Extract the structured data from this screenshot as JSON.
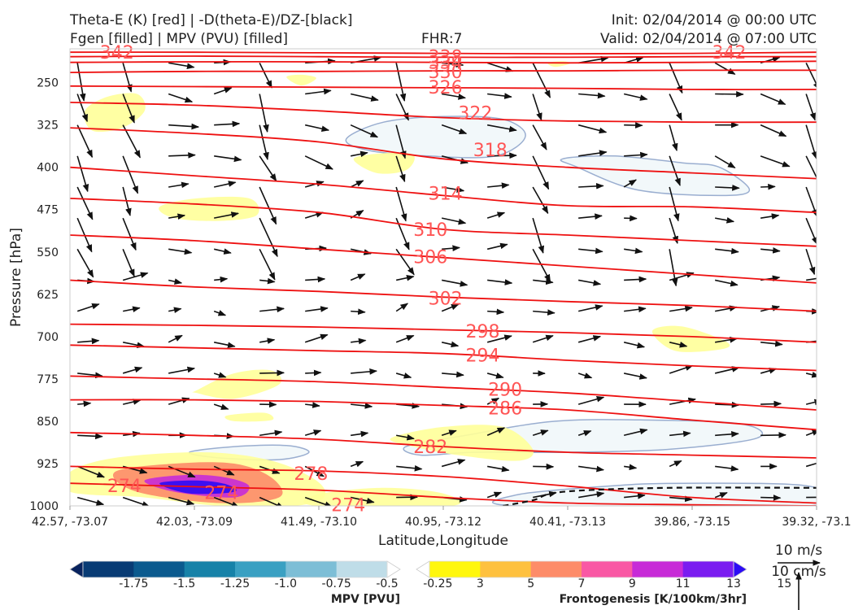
{
  "header": {
    "left_line1": "Theta-E (K) [red] | -D(theta-E)/DZ-[black]",
    "left_line2": "Fgen [filled] | MPV (PVU) [filled]",
    "center": "FHR:7",
    "right_line1": "Init: 02/04/2014 @ 00:00 UTC",
    "right_line2": "Valid: 02/04/2014 @ 07:00 UTC"
  },
  "chart_data": {
    "type": "cross-section",
    "xlabel": "Latitude,Longitude",
    "ylabel": "Pressure [hPa]",
    "x_ticks": [
      "42.57, -73.07",
      "42.03, -73.09",
      "41.49, -73.10",
      "40.95, -73.12",
      "40.41, -73.13",
      "39.86, -73.15",
      "39.32, -73.1"
    ],
    "y_ticks": [
      250,
      325,
      400,
      475,
      550,
      625,
      700,
      775,
      850,
      925,
      1000
    ],
    "ylim": [
      1000,
      190
    ],
    "theta_e_contours": [
      {
        "label": "342",
        "p": [
          196,
          196,
          197,
          198,
          199,
          198,
          196
        ]
      },
      {
        "label": "338",
        "p": [
          204,
          203,
          204,
          205,
          205,
          204,
          204
        ]
      },
      {
        "label": "334",
        "p": [
          214,
          213,
          213,
          214,
          215,
          214,
          212
        ]
      },
      {
        "label": "330",
        "p": [
          232,
          230,
          230,
          229,
          229,
          228,
          228
        ]
      },
      {
        "label": "326",
        "p": [
          256,
          257,
          258,
          259,
          260,
          262,
          262
        ]
      },
      {
        "label": "322",
        "p": [
          285,
          290,
          300,
          312,
          318,
          320,
          320
        ]
      },
      {
        "label": "318",
        "p": [
          330,
          340,
          355,
          385,
          400,
          410,
          420
        ]
      },
      {
        "label": "314",
        "p": [
          400,
          415,
          430,
          450,
          468,
          470,
          480
        ]
      },
      {
        "label": "310",
        "p": [
          455,
          465,
          480,
          510,
          520,
          530,
          540
        ]
      },
      {
        "label": "306",
        "p": [
          520,
          530,
          545,
          560,
          575,
          590,
          605
        ]
      },
      {
        "label": "302",
        "p": [
          600,
          612,
          620,
          630,
          638,
          645,
          655
        ]
      },
      {
        "label": "298",
        "p": [
          678,
          680,
          683,
          688,
          693,
          700,
          710
        ]
      },
      {
        "label": "294",
        "p": [
          715,
          720,
          725,
          730,
          742,
          752,
          760
        ]
      },
      {
        "label": "290",
        "p": [
          770,
          775,
          780,
          790,
          800,
          815,
          830
        ]
      },
      {
        "label": "286",
        "p": [
          812,
          812,
          815,
          822,
          830,
          848,
          865
        ]
      },
      {
        "label": "282",
        "p": [
          870,
          875,
          882,
          895,
          905,
          910,
          915
        ]
      },
      {
        "label": "278",
        "p": [
          930,
          935,
          938,
          948,
          965,
          985,
          995
        ]
      },
      {
        "label": "274",
        "p": [
          960,
          966,
          972,
          985,
          995,
          998,
          1000
        ]
      }
    ],
    "inline_labels": [
      {
        "text": "342",
        "x": 0.04,
        "p": 196
      },
      {
        "text": "338",
        "x": 0.48,
        "p": 204
      },
      {
        "text": "334",
        "x": 0.48,
        "p": 214
      },
      {
        "text": "330",
        "x": 0.48,
        "p": 230
      },
      {
        "text": "326",
        "x": 0.48,
        "p": 258
      },
      {
        "text": "322",
        "x": 0.52,
        "p": 303
      },
      {
        "text": "318",
        "x": 0.54,
        "p": 369
      },
      {
        "text": "314",
        "x": 0.48,
        "p": 446
      },
      {
        "text": "310",
        "x": 0.46,
        "p": 510
      },
      {
        "text": "306",
        "x": 0.46,
        "p": 558
      },
      {
        "text": "302",
        "x": 0.48,
        "p": 632
      },
      {
        "text": "298",
        "x": 0.53,
        "p": 690
      },
      {
        "text": "294",
        "x": 0.53,
        "p": 733
      },
      {
        "text": "290",
        "x": 0.56,
        "p": 793
      },
      {
        "text": "286",
        "x": 0.56,
        "p": 826
      },
      {
        "text": "282",
        "x": 0.46,
        "p": 895
      },
      {
        "text": "278",
        "x": 0.3,
        "p": 942
      },
      {
        "text": "274",
        "x": 0.05,
        "p": 964
      },
      {
        "text": "274",
        "x": 0.18,
        "p": 976
      },
      {
        "text": "274",
        "x": 0.35,
        "p": 998
      },
      {
        "text": "342",
        "x": 0.86,
        "p": 196
      }
    ],
    "fgen_regions": [
      {
        "value": 3,
        "xs": [
          0.02,
          0.05,
          0.09,
          0.1,
          0.07,
          0.03
        ],
        "ps": [
          300,
          275,
          270,
          300,
          330,
          335
        ]
      },
      {
        "value": 3,
        "xs": [
          0.29,
          0.31,
          0.33,
          0.31
        ],
        "ps": [
          240,
          236,
          242,
          255
        ]
      },
      {
        "value": 3,
        "xs": [
          0.38,
          0.42,
          0.46,
          0.45,
          0.41
        ],
        "ps": [
          385,
          375,
          378,
          405,
          410
        ]
      },
      {
        "value": 3,
        "xs": [
          0.12,
          0.17,
          0.24,
          0.25,
          0.2,
          0.14
        ],
        "ps": [
          470,
          455,
          455,
          485,
          495,
          490
        ]
      },
      {
        "value": 3,
        "xs": [
          0.64,
          0.66,
          0.67,
          0.65
        ],
        "ps": [
          215,
          212,
          216,
          222
        ]
      },
      {
        "value": 3,
        "xs": [
          0.78,
          0.82,
          0.88,
          0.87,
          0.81
        ],
        "ps": [
          690,
          682,
          710,
          723,
          725
        ]
      },
      {
        "value": 3,
        "xs": [
          0.17,
          0.22,
          0.27,
          0.28,
          0.22,
          0.17
        ],
        "ps": [
          795,
          765,
          760,
          785,
          810,
          800
        ]
      },
      {
        "value": 3,
        "xs": [
          0.21,
          0.26,
          0.27,
          0.22
        ],
        "ps": [
          840,
          835,
          848,
          850
        ]
      },
      {
        "value": 3,
        "xs": [
          0.43,
          0.5,
          0.58,
          0.62,
          0.6,
          0.52,
          0.46
        ],
        "ps": [
          880,
          860,
          860,
          900,
          920,
          910,
          895
        ]
      },
      {
        "value": 3,
        "xs": [
          0.0,
          0.06,
          0.18,
          0.27,
          0.33,
          0.34,
          0.3,
          0.2,
          0.1,
          0.0
        ],
        "ps": [
          940,
          915,
          905,
          920,
          955,
          985,
          1000,
          1000,
          985,
          975
        ]
      },
      {
        "value": 3,
        "xs": [
          0.33,
          0.42,
          0.5,
          0.51,
          0.33
        ],
        "ps": [
          980,
          968,
          978,
          1000,
          1000
        ]
      },
      {
        "value": 7,
        "xs": [
          0.06,
          0.14,
          0.22,
          0.27,
          0.28,
          0.2,
          0.09
        ],
        "ps": [
          940,
          925,
          925,
          950,
          985,
          995,
          975
        ]
      },
      {
        "value": 11,
        "xs": [
          0.1,
          0.16,
          0.21,
          0.24,
          0.22,
          0.14
        ],
        "ps": [
          955,
          945,
          950,
          965,
          985,
          975
        ]
      },
      {
        "value": 15,
        "xs": [
          0.12,
          0.17,
          0.21,
          0.22,
          0.16
        ],
        "ps": [
          960,
          955,
          962,
          975,
          978
        ]
      }
    ],
    "mpv_regions": [
      {
        "value": -0.25,
        "xs": [
          0.37,
          0.42,
          0.5,
          0.58,
          0.61,
          0.57,
          0.48,
          0.4
        ],
        "ps": [
          350,
          320,
          310,
          315,
          345,
          380,
          380,
          370
        ]
      },
      {
        "value": -0.25,
        "xs": [
          0.66,
          0.73,
          0.82,
          0.87,
          0.91,
          0.87,
          0.76,
          0.68
        ],
        "ps": [
          385,
          380,
          392,
          400,
          440,
          450,
          440,
          400
        ]
      },
      {
        "value": -0.25,
        "xs": [
          0.16,
          0.22,
          0.29,
          0.32,
          0.28,
          0.2
        ],
        "ps": [
          905,
          895,
          893,
          905,
          918,
          915
        ]
      },
      {
        "value": -0.25,
        "xs": [
          0.45,
          0.53,
          0.65,
          0.78,
          0.9,
          0.92,
          0.8,
          0.66,
          0.54,
          0.47
        ],
        "ps": [
          895,
          875,
          850,
          848,
          855,
          880,
          900,
          905,
          905,
          910
        ]
      },
      {
        "value": -0.25,
        "xs": [
          0.6,
          0.72,
          0.82,
          0.99,
          0.99,
          0.6
        ],
        "ps": [
          980,
          965,
          960,
          965,
          1000,
          1000
        ]
      }
    ],
    "ddz_zero_line": {
      "xs": [
        0.58,
        0.62,
        0.66,
        0.8,
        1.0
      ],
      "ps": [
        1000,
        990,
        975,
        968,
        968
      ]
    },
    "mpv_colorbar": {
      "title": "MPV [PVU]",
      "ticks": [
        "-1.75",
        "-1.5",
        "-1.25",
        "-1.0",
        "-0.75",
        "-0.5",
        "-0.25"
      ],
      "colors": [
        "#08235e",
        "#083b74",
        "#0b5a8e",
        "#1782a8",
        "#3aa0c2",
        "#7dbed6",
        "#bfdde8",
        "#ffffff"
      ]
    },
    "fgen_colorbar": {
      "title": "Frontogenesis [K/100km/3hr]",
      "ticks": [
        "3",
        "5",
        "7",
        "9",
        "11",
        "13",
        "15"
      ],
      "colors": [
        "#ffffff",
        "#fff70d",
        "#fec13f",
        "#fd8c69",
        "#f958a4",
        "#c72bd7",
        "#7a1cf0",
        "#2c0bf5"
      ]
    },
    "quiver_key": {
      "label1": "10 m/s",
      "label2": "10 cm/s"
    }
  }
}
